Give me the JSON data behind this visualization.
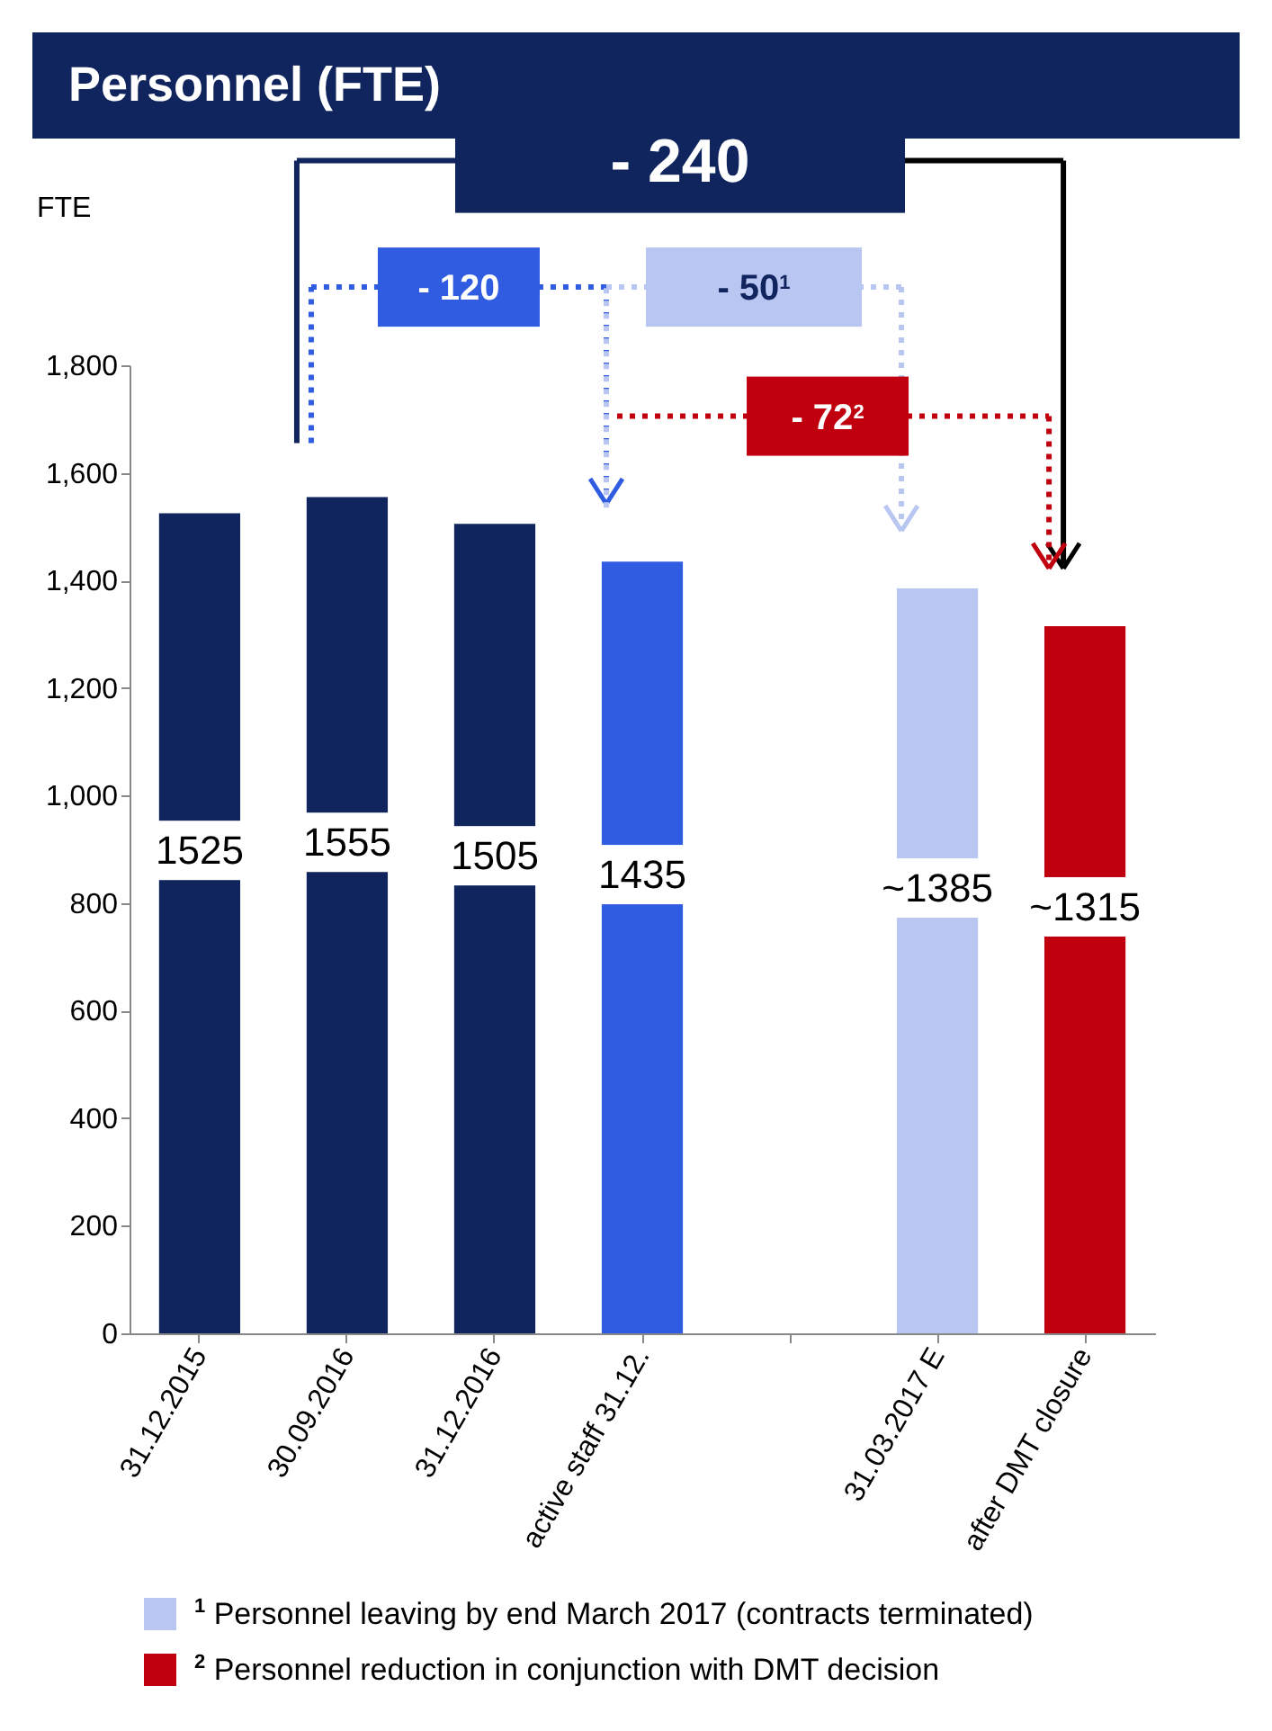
{
  "chart_data": {
    "type": "bar",
    "title": "Personnel (FTE)",
    "ylabel": "FTE",
    "categories": [
      "31.12.2015",
      "30.09.2016",
      "31.12.2016",
      "active staff 31.12.",
      null,
      "31.03.2017 E",
      "after DMT closure"
    ],
    "values": [
      1525,
      1555,
      1505,
      1435,
      null,
      1385,
      1315
    ],
    "colors": [
      "#10245e",
      "#10245e",
      "#10245e",
      "#2f5ce0",
      null,
      "#b9c6f2",
      "#c0000f"
    ],
    "value_labels": [
      "1525",
      "1555",
      "1505",
      "1435",
      null,
      "~1385",
      "~1315"
    ],
    "ylim": [
      0,
      1800
    ],
    "yticks": [
      0,
      200,
      400,
      600,
      800,
      {
        "value": 1000,
        "label": "1,000"
      },
      {
        "value": 1200,
        "label": "1,200"
      },
      {
        "value": 1400,
        "label": "1,400"
      },
      {
        "value": 1600,
        "label": "1,600"
      },
      {
        "value": 1800,
        "label": "1,800"
      }
    ],
    "grid": false,
    "annotations": [
      "- 240",
      "- 120",
      "- 50$^{1}$",
      "- 72$^{2}$",
      "$^{1}$ Personnel leaving by end March 2017 (contracts terminated)",
      "$^{2}$ Personnel reduction in conjunction with DMT decision"
    ]
  }
}
